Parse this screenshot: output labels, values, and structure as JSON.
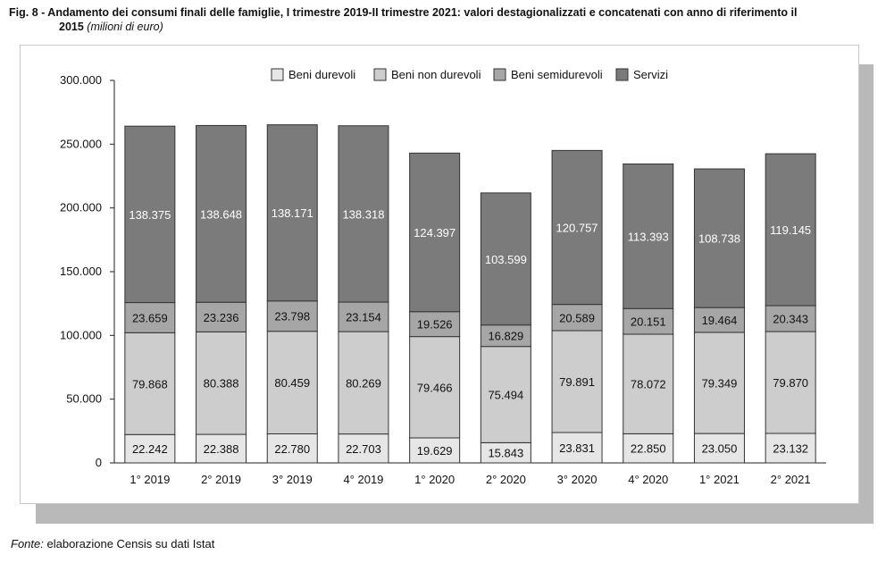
{
  "title": {
    "number": "Fig. 8 -",
    "text_line1": "Andamento dei consumi finali delle famiglie, I trimestre 2019-II trimestre 2021: valori destagionalizzati e concatenati con anno di riferimento il",
    "text_line2": "2015",
    "unit": "(milioni di euro)"
  },
  "source": {
    "label": "Fonte:",
    "text": "elaborazione Censis su dati Istat"
  },
  "chart_data": {
    "type": "bar",
    "stacked": true,
    "categories": [
      "1° 2019",
      "2° 2019",
      "3° 2019",
      "4° 2019",
      "1° 2020",
      "2° 2020",
      "3° 2020",
      "4° 2020",
      "1° 2021",
      "2° 2021"
    ],
    "series": [
      {
        "name": "Beni durevoli",
        "color": "#e6e6e6",
        "values": [
          22242,
          22388,
          22780,
          22703,
          19629,
          15843,
          23831,
          22850,
          23050,
          23132
        ],
        "labels": [
          "22.242",
          "22.388",
          "22.780",
          "22.703",
          "19.629",
          "15.843",
          "23.831",
          "22.850",
          "23.050",
          "23.132"
        ]
      },
      {
        "name": "Beni non durevoli",
        "color": "#cdcdcd",
        "values": [
          79868,
          80388,
          80459,
          80269,
          79466,
          75494,
          79891,
          78072,
          79349,
          79870
        ],
        "labels": [
          "79.868",
          "80.388",
          "80.459",
          "80.269",
          "79.466",
          "75.494",
          "79.891",
          "78.072",
          "79.349",
          "79.870"
        ]
      },
      {
        "name": "Beni semidurevoli",
        "color": "#a6a6a6",
        "values": [
          23659,
          23236,
          23798,
          23154,
          19526,
          16829,
          20589,
          20151,
          19464,
          20343
        ],
        "labels": [
          "23.659",
          "23.236",
          "23.798",
          "23.154",
          "19.526",
          "16.829",
          "20.589",
          "20.151",
          "19.464",
          "20.343"
        ]
      },
      {
        "name": "Servizi",
        "color": "#7b7b7b",
        "values": [
          138375,
          138648,
          138171,
          138318,
          124397,
          103599,
          120757,
          113393,
          108738,
          119145
        ],
        "labels": [
          "138.375",
          "138.648",
          "138.171",
          "138.318",
          "124.397",
          "103.599",
          "120.757",
          "113.393",
          "108.738",
          "119.145"
        ]
      }
    ],
    "yticks": [
      0,
      50000,
      100000,
      150000,
      200000,
      250000,
      300000
    ],
    "ytick_labels": [
      "0",
      "50.000",
      "100.000",
      "150.000",
      "200.000",
      "250.000",
      "300.000"
    ],
    "ylim": [
      0,
      300000
    ],
    "legend_position": "top-center",
    "grid": false
  }
}
